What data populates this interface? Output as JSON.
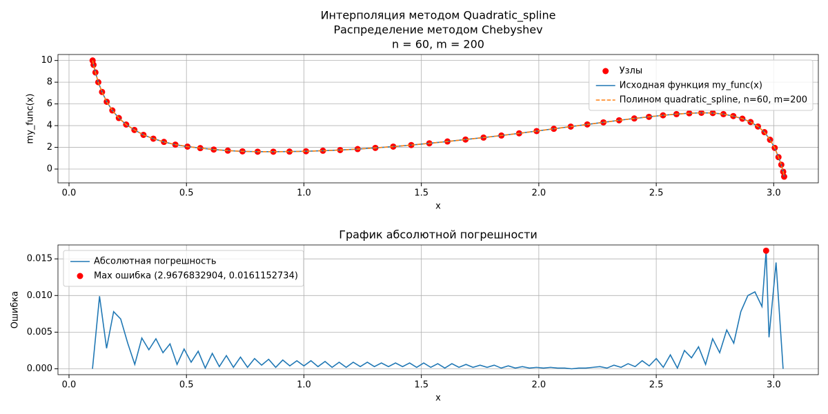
{
  "chart_data": [
    {
      "type": "line",
      "title": [
        "Интерполяция методом Quadratic_spline",
        "Распределение методом Chebyshev",
        "n = 60, m = 200"
      ],
      "xlabel": "x",
      "ylabel": "my_func(x)",
      "x": [
        0.1005,
        0.1045,
        0.1126,
        0.1247,
        0.1407,
        0.1606,
        0.1845,
        0.2121,
        0.2434,
        0.2784,
        0.317,
        0.359,
        0.4043,
        0.4528,
        0.5044,
        0.5589,
        0.6162,
        0.6761,
        0.7385,
        0.8031,
        0.8699,
        0.9386,
        1.009,
        1.081,
        1.1543,
        1.2287,
        1.3042,
        1.3803,
        1.457,
        1.5339,
        1.6111,
        1.688,
        1.7647,
        1.8408,
        1.9163,
        1.9907,
        2.064,
        2.136,
        2.2064,
        2.2751,
        2.3419,
        2.4065,
        2.4689,
        2.5288,
        2.5861,
        2.6406,
        2.6922,
        2.7407,
        2.786,
        2.828,
        2.8666,
        2.9016,
        2.9329,
        2.9605,
        2.9844,
        3.0043,
        3.0203,
        3.0324,
        3.0405,
        3.0445
      ],
      "series": [
        {
          "name": "Узлы",
          "kind": "scatter",
          "color": "#ff0000",
          "values": [
            10.0,
            9.6,
            8.9,
            8.0,
            7.1,
            6.2,
            5.4,
            4.7,
            4.1,
            3.6,
            3.15,
            2.8,
            2.5,
            2.25,
            2.07,
            1.93,
            1.8,
            1.7,
            1.63,
            1.6,
            1.6,
            1.61,
            1.64,
            1.69,
            1.75,
            1.84,
            1.95,
            2.07,
            2.21,
            2.37,
            2.54,
            2.72,
            2.9,
            3.09,
            3.29,
            3.5,
            3.71,
            3.91,
            4.11,
            4.3,
            4.49,
            4.66,
            4.81,
            4.95,
            5.06,
            5.14,
            5.18,
            5.16,
            5.06,
            4.88,
            4.64,
            4.33,
            3.92,
            3.4,
            2.7,
            1.95,
            1.1,
            0.4,
            -0.25,
            -0.7
          ]
        },
        {
          "name": "Исходная функция my_func(x)",
          "kind": "line",
          "color": "#1f77b4",
          "values": [
            10.0,
            9.6,
            8.9,
            8.0,
            7.1,
            6.2,
            5.4,
            4.7,
            4.1,
            3.6,
            3.15,
            2.8,
            2.5,
            2.25,
            2.07,
            1.93,
            1.8,
            1.7,
            1.63,
            1.6,
            1.6,
            1.61,
            1.64,
            1.69,
            1.75,
            1.84,
            1.95,
            2.07,
            2.21,
            2.37,
            2.54,
            2.72,
            2.9,
            3.09,
            3.29,
            3.5,
            3.71,
            3.91,
            4.11,
            4.3,
            4.49,
            4.66,
            4.81,
            4.95,
            5.06,
            5.14,
            5.18,
            5.16,
            5.06,
            4.88,
            4.64,
            4.33,
            3.92,
            3.4,
            2.7,
            1.95,
            1.1,
            0.4,
            -0.25,
            -0.7
          ]
        },
        {
          "name": "Полином quadratic_spline, n=60, m=200",
          "kind": "line",
          "dash": "dashed",
          "color": "#ff7f0e",
          "values": [
            10.0,
            9.6,
            8.9,
            8.0,
            7.1,
            6.2,
            5.4,
            4.7,
            4.1,
            3.6,
            3.15,
            2.8,
            2.5,
            2.25,
            2.07,
            1.93,
            1.8,
            1.7,
            1.63,
            1.6,
            1.6,
            1.61,
            1.64,
            1.69,
            1.75,
            1.84,
            1.95,
            2.07,
            2.21,
            2.37,
            2.54,
            2.72,
            2.9,
            3.09,
            3.29,
            3.5,
            3.71,
            3.91,
            4.11,
            4.3,
            4.49,
            4.66,
            4.81,
            4.95,
            5.06,
            5.14,
            5.18,
            5.16,
            5.06,
            4.88,
            4.64,
            4.33,
            3.92,
            3.4,
            2.7,
            1.95,
            1.1,
            0.4,
            -0.25,
            -0.7
          ]
        }
      ],
      "xlim": [
        -0.047,
        3.19
      ],
      "xticks": [
        {
          "value": 0,
          "label": "0.0"
        },
        {
          "value": 0.5,
          "label": "0.5"
        },
        {
          "value": 1,
          "label": "1.0"
        },
        {
          "value": 1.5,
          "label": "1.5"
        },
        {
          "value": 2,
          "label": "2.0"
        },
        {
          "value": 2.5,
          "label": "2.5"
        },
        {
          "value": 3,
          "label": "3.0"
        }
      ],
      "ylim": [
        -1.27,
        10.55
      ],
      "yticks": [
        0,
        2,
        4,
        6,
        8,
        10
      ],
      "grid": true,
      "legend": "upper right"
    },
    {
      "type": "line",
      "title": "График абсолютной погрешности",
      "xlabel": "x",
      "ylabel": "Ошибка",
      "x": [
        0.1,
        0.13,
        0.16,
        0.19,
        0.22,
        0.25,
        0.28,
        0.31,
        0.34,
        0.37,
        0.4,
        0.43,
        0.46,
        0.49,
        0.52,
        0.55,
        0.58,
        0.61,
        0.64,
        0.67,
        0.7,
        0.73,
        0.76,
        0.79,
        0.82,
        0.85,
        0.88,
        0.91,
        0.94,
        0.97,
        1.0,
        1.03,
        1.06,
        1.09,
        1.12,
        1.15,
        1.18,
        1.21,
        1.24,
        1.27,
        1.3,
        1.33,
        1.36,
        1.39,
        1.42,
        1.45,
        1.48,
        1.51,
        1.54,
        1.57,
        1.6,
        1.63,
        1.66,
        1.69,
        1.72,
        1.75,
        1.78,
        1.81,
        1.84,
        1.87,
        1.9,
        1.93,
        1.96,
        1.99,
        2.02,
        2.05,
        2.08,
        2.11,
        2.14,
        2.17,
        2.2,
        2.23,
        2.26,
        2.29,
        2.32,
        2.35,
        2.38,
        2.41,
        2.44,
        2.47,
        2.5,
        2.53,
        2.56,
        2.59,
        2.62,
        2.65,
        2.68,
        2.71,
        2.74,
        2.77,
        2.8,
        2.83,
        2.86,
        2.89,
        2.92,
        2.95,
        2.9677,
        2.98,
        3.01,
        3.04
      ],
      "series": [
        {
          "name": "Абсолютная погрешность",
          "kind": "line",
          "color": "#1f77b4",
          "values": [
            0,
            0.0099,
            0.0028,
            0.0078,
            0.0068,
            0.0035,
            0.0006,
            0.0042,
            0.0026,
            0.0041,
            0.0022,
            0.0034,
            0.0006,
            0.0027,
            0.0009,
            0.0024,
            0.0001,
            0.0021,
            0.0003,
            0.0018,
            0.0002,
            0.0016,
            0.0002,
            0.0014,
            0.0005,
            0.0013,
            0.0002,
            0.0012,
            0.0004,
            0.0011,
            0.0004,
            0.0011,
            0.0003,
            0.001,
            0.0002,
            0.0009,
            0.0002,
            0.0009,
            0.0003,
            0.0009,
            0.0003,
            0.0008,
            0.0003,
            0.0008,
            0.0003,
            0.0008,
            0.0002,
            0.0008,
            0.0002,
            0.0007,
            0.0001,
            0.0007,
            0.0002,
            0.0006,
            0.0002,
            0.0005,
            0.0002,
            0.0005,
            0.0001,
            0.0004,
            0.0001,
            0.0003,
            0.0001,
            0.0002,
            0.0001,
            0.0002,
            0.0001,
            0.0001,
            0,
            0.0001,
            0.0001,
            0.0002,
            0.0003,
            0.0001,
            0.0005,
            0.0002,
            0.0007,
            0.0003,
            0.0011,
            0.0004,
            0.0014,
            0.0002,
            0.0019,
            0.0001,
            0.0025,
            0.0015,
            0.003,
            0.0006,
            0.0041,
            0.0022,
            0.0053,
            0.0035,
            0.0078,
            0.01,
            0.0105,
            0.0085,
            0.0161,
            0.0043,
            0.0145,
            0
          ]
        },
        {
          "name": "Max ошибка (2.9676832904, 0.0161152734)",
          "kind": "scatter",
          "color": "#ff0000",
          "x": [
            2.9676832904
          ],
          "values": [
            0.0161152734
          ]
        }
      ],
      "xlim": [
        -0.047,
        3.19
      ],
      "xticks": [
        {
          "value": 0,
          "label": "0.0"
        },
        {
          "value": 0.5,
          "label": "0.5"
        },
        {
          "value": 1,
          "label": "1.0"
        },
        {
          "value": 1.5,
          "label": "1.5"
        },
        {
          "value": 2,
          "label": "2.0"
        },
        {
          "value": 2.5,
          "label": "2.5"
        },
        {
          "value": 3,
          "label": "3.0"
        }
      ],
      "ylim": [
        -0.0008,
        0.0169
      ],
      "yticks": [
        {
          "value": 0,
          "label": "0.000"
        },
        {
          "value": 0.005,
          "label": "0.005"
        },
        {
          "value": 0.01,
          "label": "0.010"
        },
        {
          "value": 0.015,
          "label": "0.015"
        }
      ],
      "grid": true,
      "legend": "upper left"
    }
  ]
}
